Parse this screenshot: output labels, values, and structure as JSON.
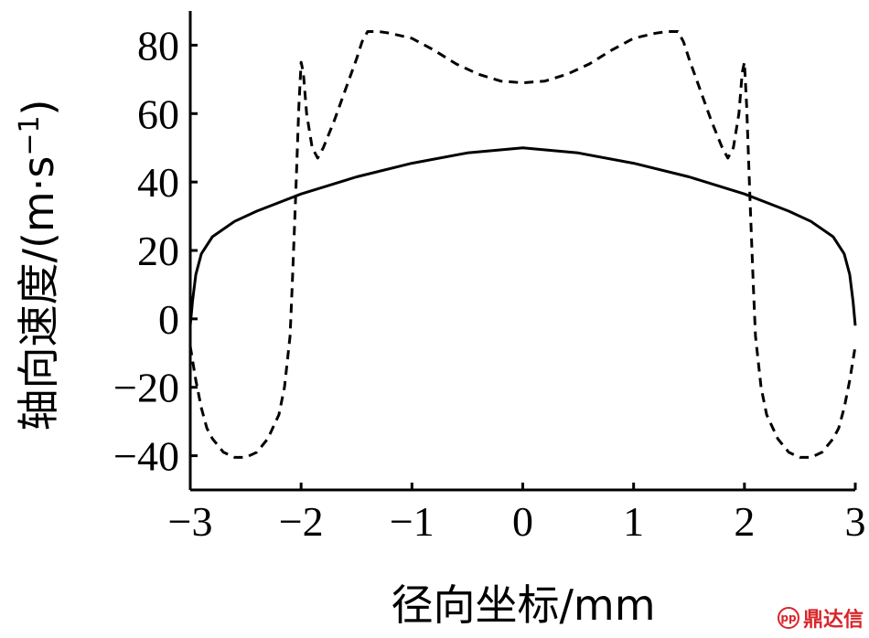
{
  "chart_data": {
    "type": "line",
    "title": "",
    "xlabel": "径向坐标/mm",
    "ylabel": "轴向速度/(m·s⁻¹)",
    "ylabel_main": "轴向速度/(m·s",
    "ylabel_sup": "−1",
    "ylabel_close": ")",
    "xlim": [
      -3,
      3
    ],
    "ylim": [
      -50,
      90
    ],
    "xticks": [
      -3,
      -2,
      -1,
      0,
      1,
      2,
      3
    ],
    "xtick_labels": [
      "−3",
      "−2",
      "−1",
      "0",
      "1",
      "2",
      "3"
    ],
    "yticks": [
      -40,
      -20,
      0,
      20,
      40,
      60,
      80
    ],
    "ytick_labels": [
      "−40",
      "−20",
      "0",
      "20",
      "40",
      "60",
      "80"
    ],
    "grid": false,
    "series": [
      {
        "style": "solid",
        "color": "#000000",
        "x": [
          -3.0,
          -2.98,
          -2.95,
          -2.9,
          -2.8,
          -2.6,
          -2.4,
          -2.2,
          -2.0,
          -1.5,
          -1.0,
          -0.5,
          0.0,
          0.5,
          1.0,
          1.5,
          2.0,
          2.2,
          2.4,
          2.6,
          2.8,
          2.9,
          2.95,
          2.98,
          3.0
        ],
        "y": [
          -2,
          5,
          13,
          19,
          24,
          28.5,
          31.5,
          34,
          36.5,
          41.5,
          45.5,
          48.5,
          50,
          48.5,
          45.5,
          41.5,
          36.5,
          34,
          31.5,
          28.5,
          24,
          19,
          13,
          5,
          -2
        ]
      },
      {
        "style": "dashed",
        "color": "#000000",
        "x": [
          -3.0,
          -2.95,
          -2.9,
          -2.85,
          -2.8,
          -2.7,
          -2.6,
          -2.5,
          -2.4,
          -2.3,
          -2.2,
          -2.15,
          -2.1,
          -2.08,
          -2.05,
          -2.02,
          -2.0,
          -1.98,
          -1.95,
          -1.9,
          -1.85,
          -1.8,
          -1.7,
          -1.6,
          -1.5,
          -1.45,
          -1.4,
          -1.3,
          -1.2,
          -1.0,
          -0.8,
          -0.6,
          -0.4,
          -0.2,
          0.0,
          0.2,
          0.4,
          0.6,
          0.8,
          1.0,
          1.2,
          1.3,
          1.4,
          1.45,
          1.5,
          1.6,
          1.7,
          1.8,
          1.85,
          1.9,
          1.95,
          1.98,
          2.0,
          2.02,
          2.05,
          2.08,
          2.1,
          2.15,
          2.2,
          2.3,
          2.4,
          2.5,
          2.6,
          2.7,
          2.8,
          2.85,
          2.9,
          2.95,
          3.0
        ],
        "y": [
          -8,
          -18,
          -26,
          -32,
          -35,
          -39,
          -40.5,
          -40.5,
          -39,
          -35,
          -28,
          -20,
          -5,
          10,
          35,
          62,
          75,
          72,
          60,
          50,
          47,
          50,
          58,
          67,
          76,
          81,
          84,
          84,
          83.5,
          82,
          78.5,
          74.5,
          71.5,
          69.5,
          69,
          69.5,
          71.5,
          74.5,
          78.5,
          82,
          83.5,
          84,
          84,
          81,
          76,
          67,
          58,
          50,
          47,
          50,
          60,
          72,
          75,
          62,
          35,
          10,
          -5,
          -20,
          -28,
          -35,
          -39,
          -40.5,
          -40.5,
          -39,
          -35,
          -32,
          -26,
          -18,
          -8
        ]
      }
    ]
  },
  "watermark": {
    "text": "鼎达信",
    "logo_text": "pp"
  }
}
